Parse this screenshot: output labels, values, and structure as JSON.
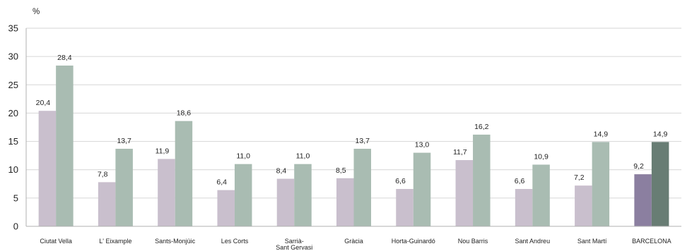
{
  "chart_data": {
    "type": "bar",
    "ylabel": "%",
    "ylim": [
      0,
      35
    ],
    "yticks": [
      "0",
      "5",
      "10",
      "15",
      "20",
      "25",
      "30",
      "35"
    ],
    "grid": true,
    "legend": "none",
    "categories": [
      "Ciutat Vella",
      "L' Eixample",
      "Sants-Monjüic",
      "Les Corts",
      "Sarrià-Sant Gervasi",
      "Gràcia",
      "Horta-Guinardó",
      "Nou Barris",
      "Sant Andreu",
      "Sant Martí",
      "BARCELONA"
    ],
    "series": [
      {
        "values": [
          20.4,
          7.8,
          11.9,
          6.4,
          8.4,
          8.5,
          6.6,
          11.7,
          6.6,
          7.2,
          9.2
        ],
        "labels": [
          "20,4",
          "7,8",
          "11,9",
          "6,4",
          "8,4",
          "8,5",
          "6,6",
          "11,7",
          "6,6",
          "7,2",
          "9,2"
        ],
        "color": "#c9bfcd",
        "highlight_color": "#8b7fa0"
      },
      {
        "values": [
          28.4,
          13.7,
          18.6,
          11.0,
          11.0,
          13.7,
          13.0,
          16.2,
          10.9,
          14.9,
          14.9
        ],
        "labels": [
          "28,4",
          "13,7",
          "18,6",
          "11,0",
          "11,0",
          "13,7",
          "13,0",
          "16,2",
          "10,9",
          "14,9",
          "14,9"
        ],
        "color": "#a9bcb2",
        "highlight_color": "#687d74"
      }
    ],
    "highlight_category": "BARCELONA",
    "axis_color": "#b0b0b0",
    "grid_color": "#d6d6d6"
  }
}
